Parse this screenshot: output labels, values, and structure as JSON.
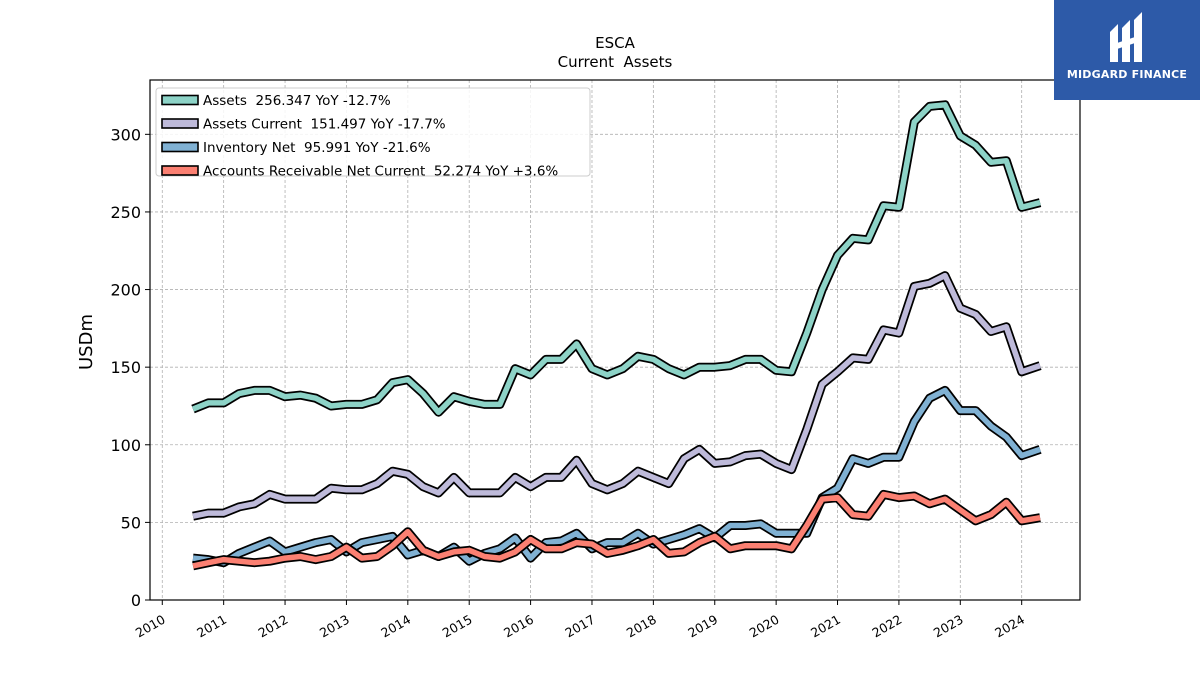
{
  "chart_data": {
    "type": "line",
    "title": "ESCA",
    "subtitle": "Current  Assets",
    "ylabel": "USDm",
    "xlabel": "",
    "ylim": [
      0,
      335
    ],
    "xlim": [
      2009.8,
      2024.95
    ],
    "yticks": [
      0,
      50,
      100,
      150,
      200,
      250,
      300
    ],
    "xticks": [
      2010,
      2011,
      2012,
      2013,
      2014,
      2015,
      2016,
      2017,
      2018,
      2019,
      2020,
      2021,
      2022,
      2023,
      2024
    ],
    "grid": true,
    "legend_position": "top-left",
    "x": [
      2010.5,
      2010.75,
      2011.0,
      2011.25,
      2011.5,
      2011.75,
      2012.0,
      2012.25,
      2012.5,
      2012.75,
      2013.0,
      2013.25,
      2013.5,
      2013.75,
      2014.0,
      2014.25,
      2014.5,
      2014.75,
      2015.0,
      2015.25,
      2015.5,
      2015.75,
      2016.0,
      2016.25,
      2016.5,
      2016.75,
      2017.0,
      2017.25,
      2017.5,
      2017.75,
      2018.0,
      2018.25,
      2018.5,
      2018.75,
      2019.0,
      2019.25,
      2019.5,
      2019.75,
      2020.0,
      2020.25,
      2020.5,
      2020.75,
      2021.0,
      2021.25,
      2021.5,
      2021.75,
      2022.0,
      2022.25,
      2022.5,
      2022.75,
      2023.0,
      2023.25,
      2023.5,
      2023.75,
      2024.0,
      2024.3
    ],
    "series": [
      {
        "name": "Assets  256.347 YoY -12.7%",
        "color": "#8dd3c7",
        "values": [
          123,
          127,
          127,
          133,
          135,
          135,
          131,
          132,
          130,
          125,
          126,
          126,
          129,
          140,
          142,
          133,
          121,
          131,
          128,
          126,
          126,
          149,
          145,
          155,
          155,
          165,
          149,
          145,
          149,
          157,
          155,
          149,
          145,
          150,
          150,
          151,
          155,
          155,
          148,
          147,
          172,
          200,
          222,
          233,
          232,
          254,
          253,
          308,
          318,
          319,
          299,
          293,
          282,
          283,
          253,
          256
        ]
      },
      {
        "name": "Assets Current  151.497 YoY -17.7%",
        "color": "#bebada",
        "values": [
          54,
          56,
          56,
          60,
          62,
          68,
          65,
          65,
          65,
          72,
          71,
          71,
          75,
          83,
          81,
          73,
          69,
          79,
          69,
          69,
          69,
          79,
          73,
          79,
          79,
          90,
          75,
          71,
          75,
          83,
          79,
          75,
          91,
          97,
          88,
          89,
          93,
          94,
          88,
          84,
          110,
          139,
          147,
          156,
          155,
          174,
          172,
          202,
          204,
          209,
          188,
          184,
          173,
          176,
          147,
          151
        ]
      },
      {
        "name": "Inventory Net  95.991 YoY -21.6%",
        "color": "#80b1d3",
        "values": [
          27,
          26,
          24,
          30,
          34,
          38,
          31,
          34,
          37,
          39,
          31,
          37,
          39,
          41,
          29,
          32,
          28,
          34,
          25,
          30,
          33,
          40,
          27,
          37,
          38,
          43,
          33,
          37,
          37,
          43,
          36,
          39,
          42,
          46,
          40,
          48,
          48,
          49,
          43,
          43,
          43,
          66,
          72,
          91,
          88,
          92,
          92,
          115,
          130,
          135,
          122,
          122,
          112,
          105,
          93,
          97
        ]
      },
      {
        "name": "Accounts Receivable Net Current  52.274 YoY +3.6%",
        "color": "#fb8072",
        "values": [
          22,
          24,
          26,
          25,
          24,
          25,
          27,
          28,
          26,
          28,
          34,
          27,
          28,
          35,
          44,
          32,
          28,
          31,
          32,
          28,
          27,
          31,
          39,
          33,
          33,
          37,
          36,
          30,
          32,
          35,
          39,
          30,
          31,
          37,
          41,
          33,
          35,
          35,
          35,
          33,
          48,
          65,
          66,
          55,
          54,
          68,
          66,
          67,
          62,
          65,
          58,
          51,
          55,
          63,
          51,
          53
        ]
      }
    ]
  },
  "brand": {
    "name": "MIDGARD FINANCE",
    "color": "#2d5aa8"
  }
}
